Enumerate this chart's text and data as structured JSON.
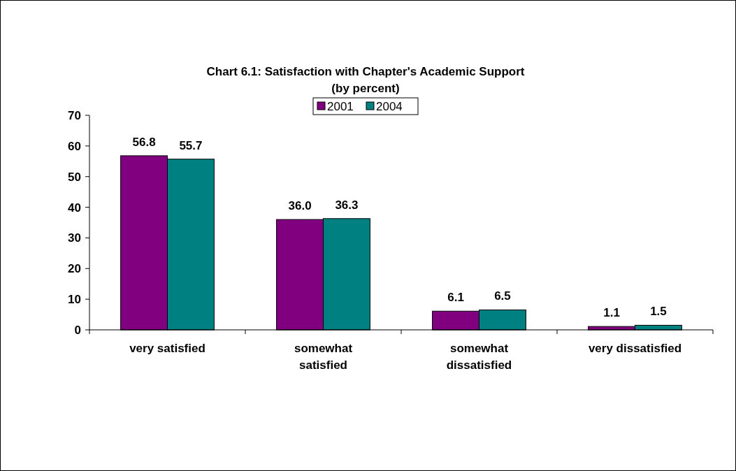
{
  "chart_data": {
    "type": "bar",
    "title": "Chart 6.1: Satisfaction with Chapter's Academic Support",
    "subtitle": "(by percent)",
    "categories": [
      "very satisfied",
      "somewhat satisfied",
      "somewhat dissatisfied",
      "very dissatisfied"
    ],
    "series": [
      {
        "name": "2001",
        "color": "#800080",
        "values": [
          56.8,
          36.0,
          6.1,
          1.1
        ],
        "value_labels": [
          "56.8",
          "36.0",
          "6.1",
          "1.1"
        ]
      },
      {
        "name": "2004",
        "color": "#008080",
        "values": [
          55.7,
          36.3,
          6.5,
          1.5
        ],
        "value_labels": [
          "55.7",
          "36.3",
          "6.5",
          "1.5"
        ]
      }
    ],
    "ylim": [
      0,
      70
    ],
    "yticks": [
      0,
      10,
      20,
      30,
      40,
      50,
      60,
      70
    ],
    "grid": false,
    "legend": "top"
  }
}
